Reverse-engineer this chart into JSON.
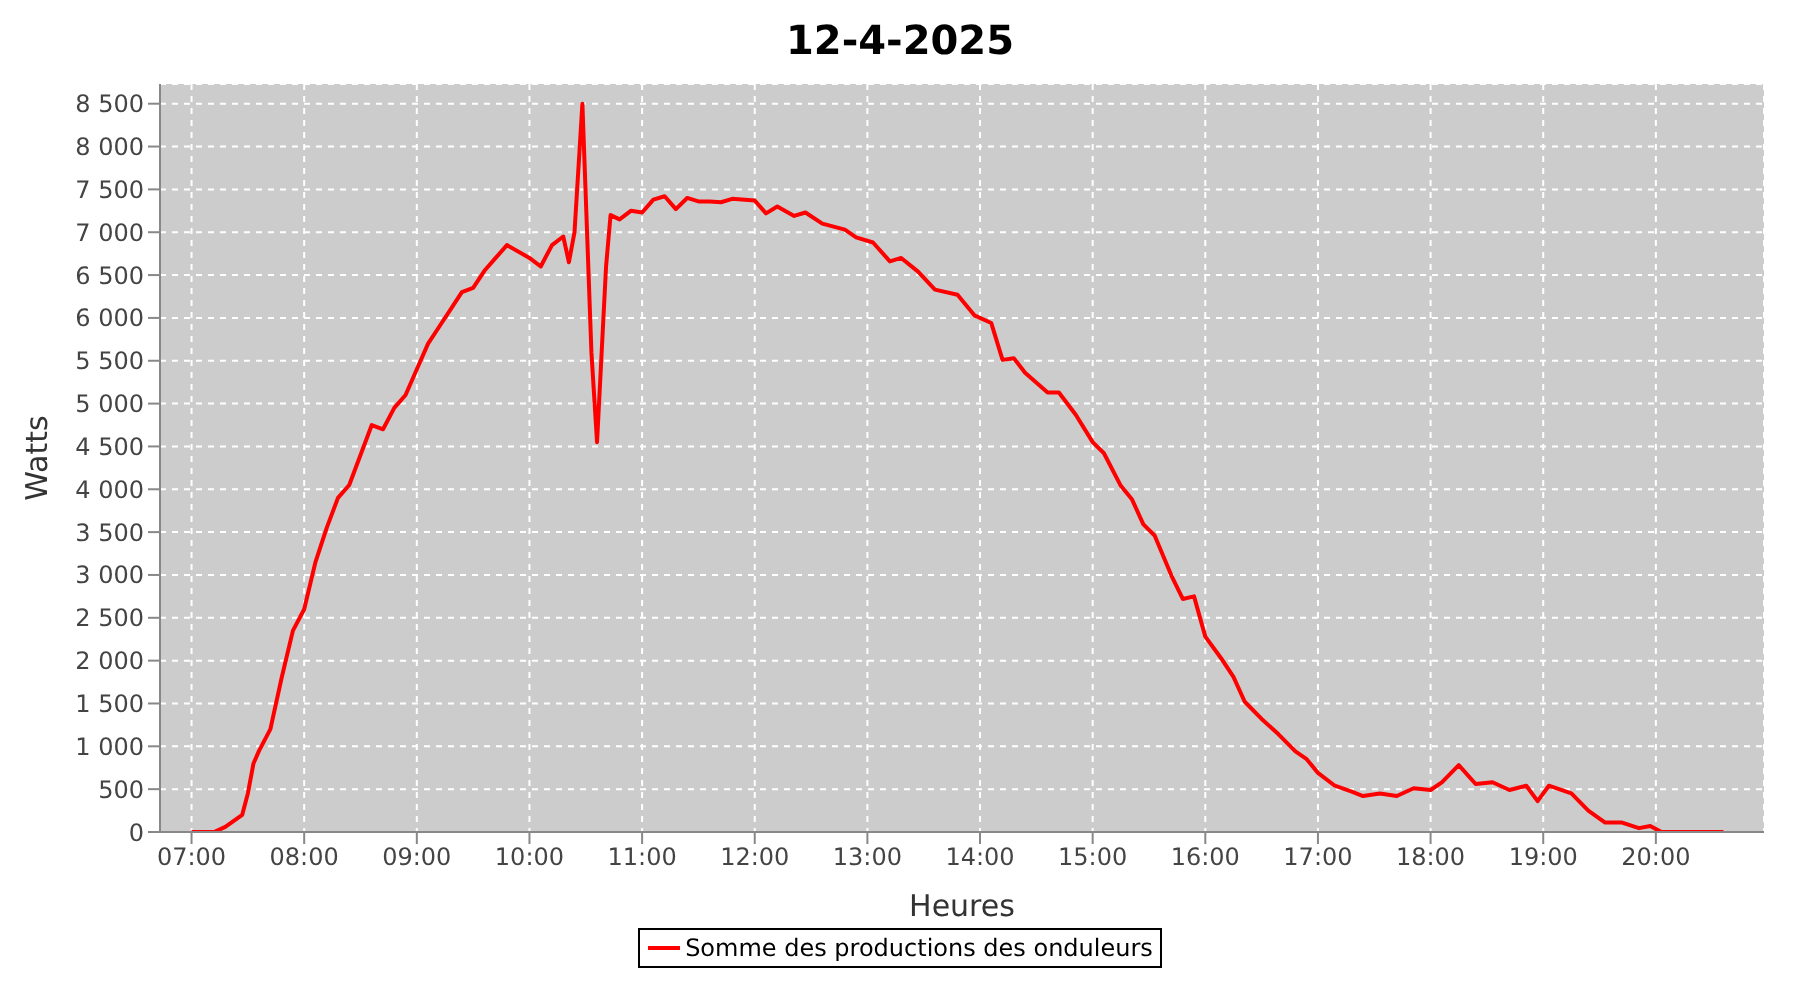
{
  "chart_data": {
    "type": "line",
    "title": "12-4-2025",
    "xlabel": "Heures",
    "ylabel": "Watts",
    "x": [
      7.0,
      7.2,
      7.3,
      7.45,
      7.5,
      7.55,
      7.6,
      7.7,
      7.8,
      7.9,
      8.0,
      8.1,
      8.2,
      8.3,
      8.4,
      8.5,
      8.6,
      8.7,
      8.8,
      8.9,
      9.0,
      9.1,
      9.2,
      9.3,
      9.4,
      9.5,
      9.6,
      9.7,
      9.8,
      10.0,
      10.1,
      10.2,
      10.3,
      10.35,
      10.4,
      10.47,
      10.55,
      10.6,
      10.68,
      10.72,
      10.8,
      10.9,
      11.0,
      11.1,
      11.2,
      11.3,
      11.4,
      11.5,
      11.6,
      11.7,
      11.8,
      12.0,
      12.1,
      12.2,
      12.35,
      12.45,
      12.6,
      12.8,
      12.9,
      13.05,
      13.2,
      13.3,
      13.45,
      13.6,
      13.8,
      13.95,
      14.1,
      14.2,
      14.3,
      14.4,
      14.6,
      14.7,
      14.85,
      15.0,
      15.1,
      15.25,
      15.35,
      15.45,
      15.55,
      15.7,
      15.8,
      15.9,
      16.0,
      16.15,
      16.25,
      16.35,
      16.5,
      16.65,
      16.8,
      16.9,
      17.0,
      17.15,
      17.3,
      17.4,
      17.55,
      17.7,
      17.85,
      18.0,
      18.1,
      18.25,
      18.4,
      18.55,
      18.7,
      18.85,
      18.95,
      19.05,
      19.25,
      19.4,
      19.55,
      19.7,
      19.85,
      19.95,
      20.05,
      20.6
    ],
    "series": [
      {
        "name": "Somme des productions des onduleurs",
        "color": "#ff0000",
        "values": [
          0,
          0,
          60,
          200,
          450,
          800,
          950,
          1200,
          1800,
          2350,
          2600,
          3150,
          3550,
          3900,
          4050,
          4400,
          4750,
          4700,
          4950,
          5100,
          5400,
          5700,
          5900,
          6100,
          6300,
          6350,
          6550,
          6700,
          6850,
          6700,
          6600,
          6850,
          6950,
          6650,
          7000,
          8500,
          5600,
          4550,
          6600,
          7200,
          7150,
          7250,
          7230,
          7380,
          7420,
          7270,
          7400,
          7360,
          7360,
          7350,
          7390,
          7370,
          7220,
          7300,
          7190,
          7230,
          7100,
          7030,
          6940,
          6880,
          6660,
          6700,
          6540,
          6330,
          6270,
          6030,
          5940,
          5510,
          5530,
          5360,
          5130,
          5130,
          4870,
          4550,
          4420,
          4040,
          3880,
          3590,
          3460,
          2990,
          2720,
          2750,
          2280,
          2010,
          1810,
          1520,
          1320,
          1140,
          940,
          850,
          690,
          540,
          470,
          420,
          450,
          420,
          510,
          490,
          580,
          780,
          560,
          580,
          490,
          540,
          360,
          540,
          450,
          250,
          110,
          110,
          45,
          70,
          0,
          0
        ]
      }
    ],
    "xlim": [
      6.72,
      20.96
    ],
    "xticks": [
      {
        "value": 7,
        "label": "07:00"
      },
      {
        "value": 8,
        "label": "08:00"
      },
      {
        "value": 9,
        "label": "09:00"
      },
      {
        "value": 10,
        "label": "10:00"
      },
      {
        "value": 11,
        "label": "11:00"
      },
      {
        "value": 12,
        "label": "12:00"
      },
      {
        "value": 13,
        "label": "13:00"
      },
      {
        "value": 14,
        "label": "14:00"
      },
      {
        "value": 15,
        "label": "15:00"
      },
      {
        "value": 16,
        "label": "16:00"
      },
      {
        "value": 17,
        "label": "17:00"
      },
      {
        "value": 18,
        "label": "18:00"
      },
      {
        "value": 19,
        "label": "19:00"
      },
      {
        "value": 20,
        "label": "20:00"
      }
    ],
    "ylim": [
      0,
      8730
    ],
    "yticks": [
      0,
      500,
      {
        "value": 1000,
        "label": "1 000"
      },
      {
        "value": 1500,
        "label": "1 500"
      },
      {
        "value": 2000,
        "label": "2 000"
      },
      {
        "value": 2500,
        "label": "2 500"
      },
      {
        "value": 3000,
        "label": "3 000"
      },
      {
        "value": 3500,
        "label": "3 500"
      },
      {
        "value": 4000,
        "label": "4 000"
      },
      {
        "value": 4500,
        "label": "4 500"
      },
      {
        "value": 5000,
        "label": "5 000"
      },
      {
        "value": 5500,
        "label": "5 500"
      },
      {
        "value": 6000,
        "label": "6 000"
      },
      {
        "value": 6500,
        "label": "6 500"
      },
      {
        "value": 7000,
        "label": "7 000"
      },
      {
        "value": 7500,
        "label": "7 500"
      },
      {
        "value": 8000,
        "label": "8 000"
      },
      {
        "value": 8500,
        "label": "8 500"
      }
    ],
    "grid": true,
    "legend": "bottom"
  }
}
